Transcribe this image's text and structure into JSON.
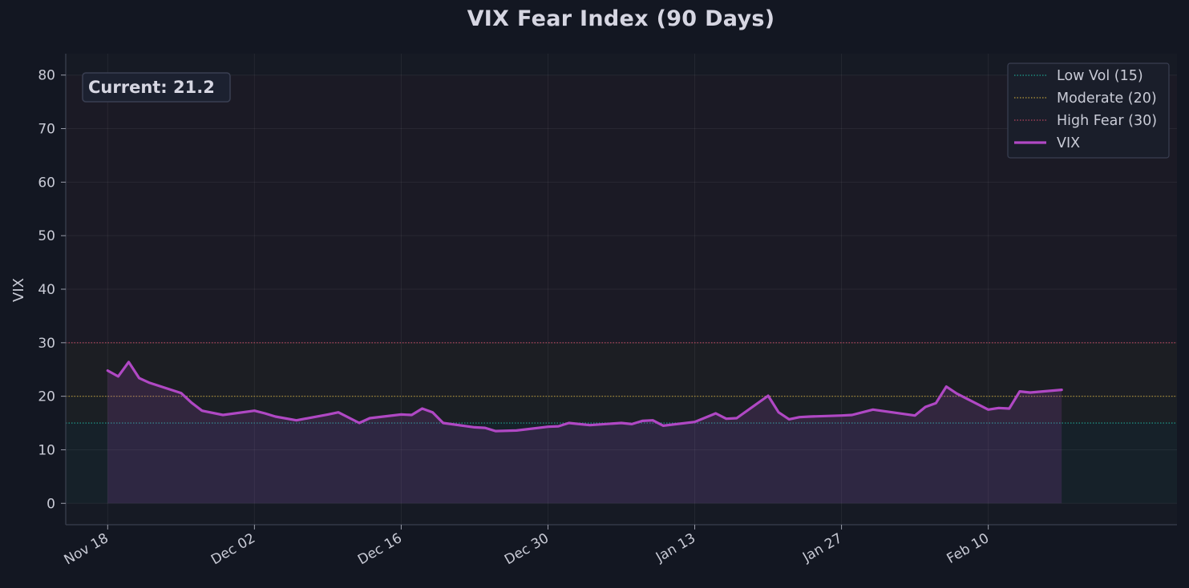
{
  "chart_data": {
    "type": "line",
    "title": "VIX Fear Index (90 Days)",
    "xlabel": "",
    "ylabel": "VIX",
    "ylim": [
      -4,
      84
    ],
    "yticks": [
      0,
      10,
      20,
      30,
      40,
      50,
      60,
      70,
      80
    ],
    "xlim": [
      "2024-11-14",
      "2025-02-28"
    ],
    "xticks": [
      {
        "date": "2024-11-18",
        "label": "Nov 18"
      },
      {
        "date": "2024-12-02",
        "label": "Dec 02"
      },
      {
        "date": "2024-12-16",
        "label": "Dec 16"
      },
      {
        "date": "2024-12-30",
        "label": "Dec 30"
      },
      {
        "date": "2025-01-13",
        "label": "Jan 13"
      },
      {
        "date": "2025-01-27",
        "label": "Jan 27"
      },
      {
        "date": "2025-02-10",
        "label": "Feb 10"
      }
    ],
    "grid": true,
    "legend_position": "top-right",
    "annotation": "Current: 21.2",
    "zones": [
      {
        "from": 0,
        "to": 15,
        "color": "#1d9b8a"
      },
      {
        "from": 15,
        "to": 20,
        "color": "#7a7a3a"
      },
      {
        "from": 20,
        "to": 30,
        "color": "#8a6a2a"
      },
      {
        "from": 30,
        "to": 80,
        "color": "#7a2a4a"
      }
    ],
    "thresholds": [
      {
        "name": "Low Vol (15)",
        "value": 15,
        "color": "#1f9e8e"
      },
      {
        "name": "Moderate (20)",
        "value": 20,
        "color": "#b99a3a"
      },
      {
        "name": "High Fear (30)",
        "value": 30,
        "color": "#b5465e"
      }
    ],
    "series": [
      {
        "name": "VIX",
        "color": "#b048c4",
        "points": [
          [
            "2024-11-18",
            24.8
          ],
          [
            "2024-11-19",
            23.7
          ],
          [
            "2024-11-20",
            26.4
          ],
          [
            "2024-11-21",
            23.4
          ],
          [
            "2024-11-22",
            22.5
          ],
          [
            "2024-11-25",
            20.6
          ],
          [
            "2024-11-26",
            18.8
          ],
          [
            "2024-11-27",
            17.3
          ],
          [
            "2024-11-29",
            16.5
          ],
          [
            "2024-12-02",
            17.3
          ],
          [
            "2024-12-03",
            16.8
          ],
          [
            "2024-12-04",
            16.2
          ],
          [
            "2024-12-06",
            15.5
          ],
          [
            "2024-12-09",
            16.6
          ],
          [
            "2024-12-10",
            17.0
          ],
          [
            "2024-12-12",
            15.0
          ],
          [
            "2024-12-13",
            15.9
          ],
          [
            "2024-12-16",
            16.6
          ],
          [
            "2024-12-17",
            16.5
          ],
          [
            "2024-12-18",
            17.7
          ],
          [
            "2024-12-19",
            17.0
          ],
          [
            "2024-12-20",
            15.0
          ],
          [
            "2024-12-23",
            14.2
          ],
          [
            "2024-12-24",
            14.1
          ],
          [
            "2024-12-25",
            13.5
          ],
          [
            "2024-12-27",
            13.6
          ],
          [
            "2024-12-30",
            14.3
          ],
          [
            "2024-12-31",
            14.4
          ],
          [
            "2025-01-01",
            15.0
          ],
          [
            "2025-01-02",
            14.8
          ],
          [
            "2025-01-03",
            14.6
          ],
          [
            "2025-01-06",
            15.0
          ],
          [
            "2025-01-07",
            14.8
          ],
          [
            "2025-01-08",
            15.4
          ],
          [
            "2025-01-09",
            15.5
          ],
          [
            "2025-01-10",
            14.5
          ],
          [
            "2025-01-13",
            15.2
          ],
          [
            "2025-01-15",
            16.8
          ],
          [
            "2025-01-16",
            15.8
          ],
          [
            "2025-01-17",
            15.9
          ],
          [
            "2025-01-20",
            20.1
          ],
          [
            "2025-01-21",
            17.0
          ],
          [
            "2025-01-22",
            15.7
          ],
          [
            "2025-01-23",
            16.1
          ],
          [
            "2025-01-24",
            16.2
          ],
          [
            "2025-01-27",
            16.4
          ],
          [
            "2025-01-28",
            16.5
          ],
          [
            "2025-01-30",
            17.5
          ],
          [
            "2025-02-03",
            16.4
          ],
          [
            "2025-02-04",
            18.0
          ],
          [
            "2025-02-05",
            18.7
          ],
          [
            "2025-02-06",
            21.8
          ],
          [
            "2025-02-07",
            20.5
          ],
          [
            "2025-02-10",
            17.5
          ],
          [
            "2025-02-11",
            17.8
          ],
          [
            "2025-02-12",
            17.7
          ],
          [
            "2025-02-13",
            20.9
          ],
          [
            "2025-02-14",
            20.7
          ],
          [
            "2025-02-17",
            21.2
          ]
        ]
      }
    ]
  }
}
